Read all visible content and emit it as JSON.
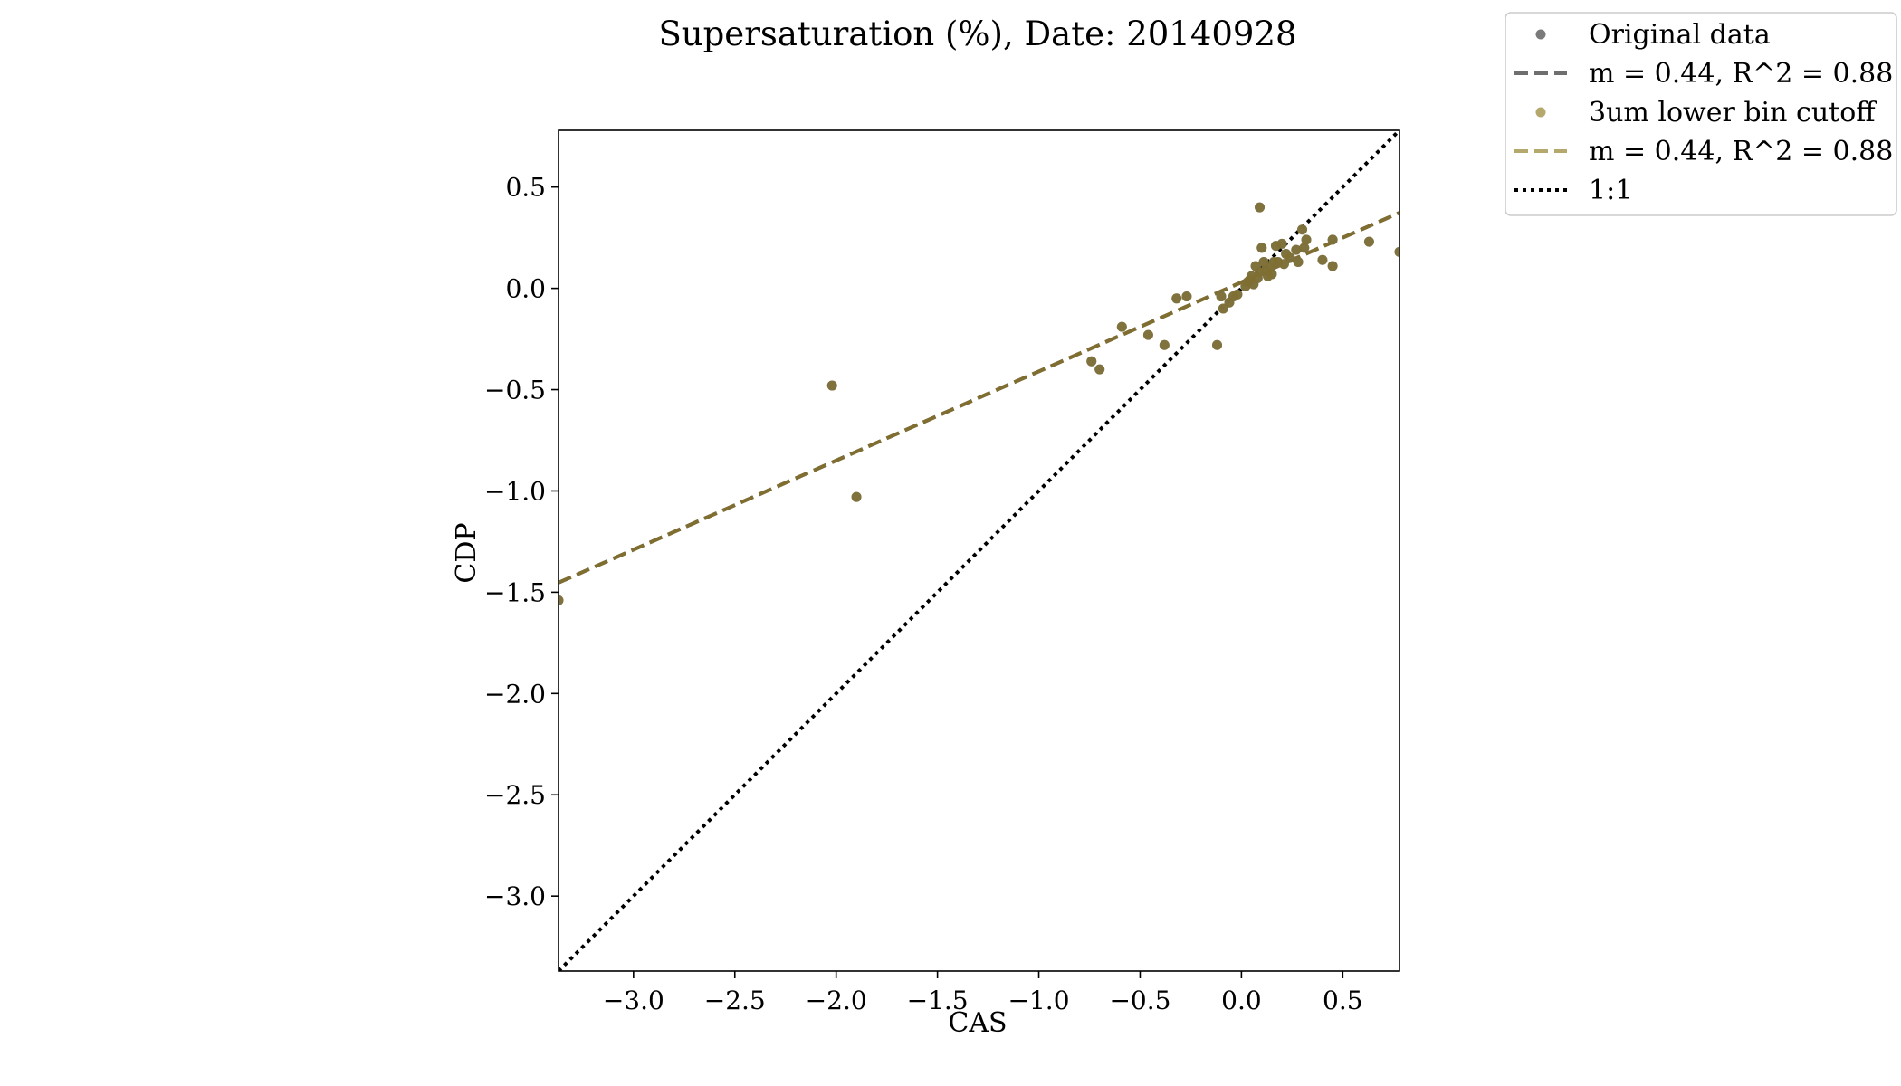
{
  "chart_data": {
    "type": "scatter",
    "title": "Supersaturation (%), Date: 20140928",
    "xlabel": "CAS",
    "ylabel": "CDP",
    "xlim": [
      -3.37,
      0.78
    ],
    "ylim": [
      -3.37,
      0.78
    ],
    "xticks": [
      -3.0,
      -2.5,
      -2.0,
      -1.5,
      -1.0,
      -0.5,
      0.0,
      0.5
    ],
    "yticks": [
      -3.0,
      -2.5,
      -2.0,
      -1.5,
      -1.0,
      -0.5,
      0.0,
      0.5
    ],
    "xtick_labels": [
      "−3.0",
      "−2.5",
      "−2.0",
      "−1.5",
      "−1.0",
      "−0.5",
      "0.0",
      "0.5"
    ],
    "ytick_labels": [
      "−3.0",
      "−2.5",
      "−2.0",
      "−1.5",
      "−1.0",
      "−0.5",
      "0.0",
      "0.5"
    ],
    "grid": false,
    "legend_position": "outside top-right",
    "colors": {
      "original": "#7a7a7a",
      "original_fit": "#6e6e6e",
      "cutoff": "#b5a86c",
      "cutoff_fit": "#b5a86c",
      "overlap": "#7f6e30",
      "one_to_one": "#000000"
    },
    "legend": [
      {
        "label": "Original data",
        "marker": "dot",
        "color": "#7a7a7a"
      },
      {
        "label": "m = 0.44, R^2 = 0.88",
        "marker": "dashed",
        "color": "#6e6e6e"
      },
      {
        "label": "3um lower bin cutoff",
        "marker": "dot",
        "color": "#b5a86c"
      },
      {
        "label": "m = 0.44, R^2 = 0.88",
        "marker": "dashed",
        "color": "#b5a86c"
      },
      {
        "label": "1:1",
        "marker": "dotted",
        "color": "#000000"
      }
    ],
    "series": [
      {
        "name": "Original data",
        "points": [
          [
            -3.37,
            -1.54
          ],
          [
            -2.02,
            -0.48
          ],
          [
            -1.9,
            -1.03
          ],
          [
            -0.74,
            -0.36
          ],
          [
            -0.7,
            -0.4
          ],
          [
            -0.59,
            -0.19
          ],
          [
            -0.46,
            -0.23
          ],
          [
            -0.38,
            -0.28
          ],
          [
            -0.32,
            -0.05
          ],
          [
            -0.27,
            -0.04
          ],
          [
            -0.12,
            -0.28
          ],
          [
            -0.1,
            -0.04
          ],
          [
            -0.09,
            -0.1
          ],
          [
            -0.06,
            -0.07
          ],
          [
            -0.04,
            -0.04
          ],
          [
            -0.02,
            -0.03
          ],
          [
            0.02,
            0.01
          ],
          [
            0.03,
            0.03
          ],
          [
            0.04,
            0.04
          ],
          [
            0.05,
            0.06
          ],
          [
            0.06,
            0.02
          ],
          [
            0.07,
            0.11
          ],
          [
            0.08,
            0.05
          ],
          [
            0.09,
            0.08
          ],
          [
            0.09,
            0.4
          ],
          [
            0.1,
            0.2
          ],
          [
            0.11,
            0.13
          ],
          [
            0.12,
            0.09
          ],
          [
            0.13,
            0.06
          ],
          [
            0.14,
            0.1
          ],
          [
            0.15,
            0.07
          ],
          [
            0.16,
            0.13
          ],
          [
            0.17,
            0.21
          ],
          [
            0.18,
            0.13
          ],
          [
            0.2,
            0.22
          ],
          [
            0.21,
            0.12
          ],
          [
            0.22,
            0.17
          ],
          [
            0.24,
            0.15
          ],
          [
            0.27,
            0.19
          ],
          [
            0.28,
            0.13
          ],
          [
            0.3,
            0.29
          ],
          [
            0.31,
            0.2
          ],
          [
            0.32,
            0.24
          ],
          [
            0.4,
            0.14
          ],
          [
            0.45,
            0.11
          ],
          [
            0.45,
            0.24
          ],
          [
            0.63,
            0.23
          ],
          [
            0.78,
            0.18
          ]
        ]
      },
      {
        "name": "3um lower bin cutoff",
        "points": [
          [
            -3.37,
            -1.54
          ],
          [
            -2.02,
            -0.48
          ],
          [
            -1.9,
            -1.03
          ],
          [
            -0.74,
            -0.36
          ],
          [
            -0.7,
            -0.4
          ],
          [
            -0.59,
            -0.19
          ],
          [
            -0.46,
            -0.23
          ],
          [
            -0.38,
            -0.28
          ],
          [
            -0.32,
            -0.05
          ],
          [
            -0.27,
            -0.04
          ],
          [
            -0.12,
            -0.28
          ],
          [
            -0.1,
            -0.04
          ],
          [
            -0.09,
            -0.1
          ],
          [
            -0.06,
            -0.07
          ],
          [
            -0.04,
            -0.04
          ],
          [
            -0.02,
            -0.03
          ],
          [
            0.02,
            0.01
          ],
          [
            0.03,
            0.03
          ],
          [
            0.04,
            0.04
          ],
          [
            0.05,
            0.06
          ],
          [
            0.06,
            0.02
          ],
          [
            0.07,
            0.11
          ],
          [
            0.08,
            0.05
          ],
          [
            0.09,
            0.08
          ],
          [
            0.09,
            0.4
          ],
          [
            0.1,
            0.2
          ],
          [
            0.11,
            0.13
          ],
          [
            0.12,
            0.09
          ],
          [
            0.13,
            0.06
          ],
          [
            0.14,
            0.1
          ],
          [
            0.15,
            0.07
          ],
          [
            0.16,
            0.13
          ],
          [
            0.17,
            0.21
          ],
          [
            0.18,
            0.13
          ],
          [
            0.2,
            0.22
          ],
          [
            0.21,
            0.12
          ],
          [
            0.22,
            0.17
          ],
          [
            0.24,
            0.15
          ],
          [
            0.27,
            0.19
          ],
          [
            0.28,
            0.13
          ],
          [
            0.3,
            0.29
          ],
          [
            0.31,
            0.2
          ],
          [
            0.32,
            0.24
          ],
          [
            0.4,
            0.14
          ],
          [
            0.45,
            0.11
          ],
          [
            0.45,
            0.24
          ],
          [
            0.63,
            0.23
          ],
          [
            0.78,
            0.18
          ]
        ]
      }
    ],
    "fits": [
      {
        "label": "m = 0.44, R^2 = 0.88",
        "slope": 0.44,
        "intercept": 0.03
      },
      {
        "label": "m = 0.44, R^2 = 0.88",
        "slope": 0.44,
        "intercept": 0.03
      }
    ],
    "reference_line": {
      "label": "1:1",
      "slope": 1,
      "intercept": 0
    }
  }
}
